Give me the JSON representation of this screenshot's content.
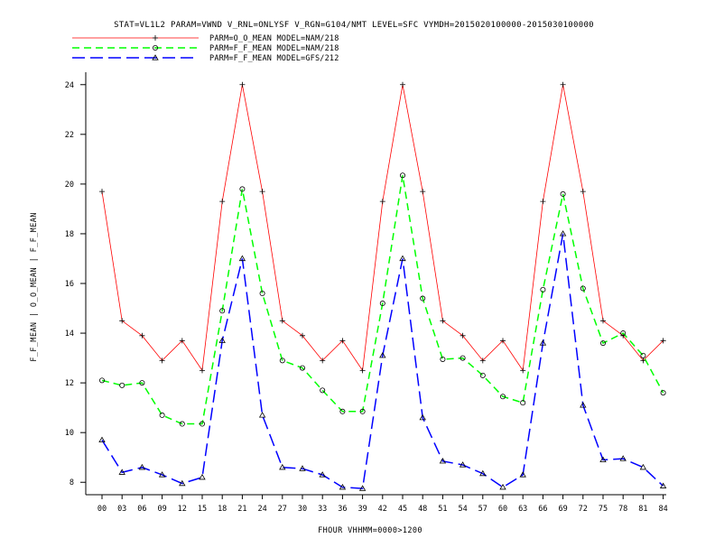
{
  "title": "STAT=VL1L2 PARAM=VWND V_RNL=ONLYSF V_RGN=G104/NMT LEVEL=SFC VYMDH=2015020100000-2015030100000",
  "xlabel": "FHOUR VHHMM=0000>1200",
  "ylabel": "F_F_MEAN | O_O_MEAN | F_F_MEAN",
  "chart_data": {
    "type": "line",
    "categories": [
      "00",
      "03",
      "06",
      "09",
      "12",
      "15",
      "18",
      "21",
      "24",
      "27",
      "30",
      "33",
      "36",
      "39",
      "42",
      "45",
      "48",
      "51",
      "54",
      "57",
      "60",
      "63",
      "66",
      "69",
      "72",
      "75",
      "78",
      "81",
      "84"
    ],
    "ylim": [
      7.5,
      24.5
    ],
    "yticks": [
      8,
      10,
      12,
      14,
      16,
      18,
      20,
      22,
      24
    ],
    "grid": false,
    "legend_position": "top-left",
    "series": [
      {
        "name": "PARM=O_O_MEAN MODEL=NAM/218",
        "color": "#ff0000",
        "dash": "",
        "marker": "plus",
        "values": [
          19.7,
          14.5,
          13.9,
          12.9,
          13.7,
          12.5,
          19.3,
          24.0,
          19.7,
          14.5,
          13.9,
          12.9,
          13.7,
          12.5,
          19.3,
          24.0,
          19.7,
          14.5,
          13.9,
          12.9,
          13.7,
          12.5,
          19.3,
          24.0,
          19.7,
          14.5,
          13.9,
          12.9,
          13.7
        ]
      },
      {
        "name": "PARM=F_F_MEAN MODEL=NAM/218",
        "color": "#00ff00",
        "dash": "8,5",
        "marker": "circle",
        "values": [
          12.1,
          11.9,
          12.0,
          10.7,
          10.35,
          10.35,
          14.9,
          19.8,
          15.6,
          12.9,
          12.6,
          11.7,
          10.85,
          10.85,
          15.2,
          20.35,
          15.4,
          12.95,
          13.0,
          12.3,
          11.45,
          11.2,
          15.75,
          19.6,
          15.8,
          13.6,
          14.0,
          13.1,
          11.6
        ]
      },
      {
        "name": "PARM=F_F_MEAN MODEL=GFS/212",
        "color": "#0000ff",
        "dash": "14,6",
        "marker": "triangle",
        "values": [
          9.7,
          8.4,
          8.6,
          8.3,
          7.95,
          8.2,
          13.7,
          17.0,
          10.7,
          8.6,
          8.55,
          8.3,
          7.8,
          7.75,
          13.1,
          17.0,
          10.6,
          8.85,
          8.7,
          8.35,
          7.8,
          8.3,
          13.6,
          18.0,
          11.1,
          8.9,
          8.95,
          8.6,
          7.85
        ]
      }
    ]
  }
}
